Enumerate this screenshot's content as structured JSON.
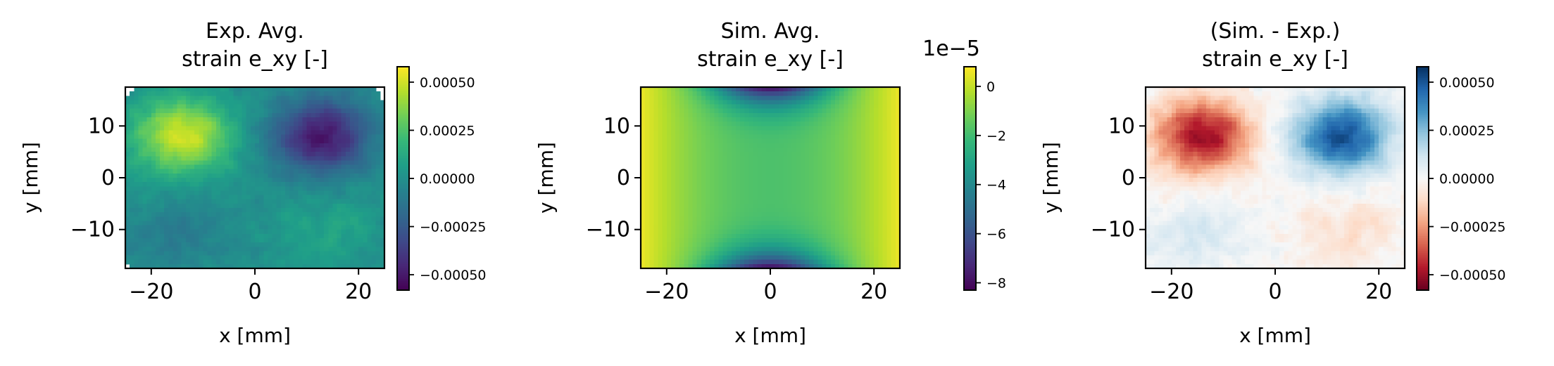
{
  "chart_data": [
    {
      "type": "heatmap",
      "id": "exp",
      "title": [
        "Exp. Avg.",
        "strain e_xy [-]"
      ],
      "xlabel": "x [mm]",
      "ylabel": "y [mm]",
      "xlim": [
        -25,
        25
      ],
      "ylim": [
        -17.5,
        17.5
      ],
      "xticks": [
        {
          "v": -20,
          "label": "−20"
        },
        {
          "v": 0,
          "label": "0"
        },
        {
          "v": 20,
          "label": "20"
        }
      ],
      "yticks": [
        {
          "v": 10,
          "label": "10"
        },
        {
          "v": 0,
          "label": "0"
        },
        {
          "v": -10,
          "label": "−10"
        }
      ],
      "colormap": "viridis",
      "clim": [
        -0.00058,
        0.00058
      ],
      "colorbar_ticks": [
        {
          "v": 0.0005,
          "label": "0.00050"
        },
        {
          "v": 0.00025,
          "label": "0.00025"
        },
        {
          "v": 0,
          "label": "0.00000"
        },
        {
          "v": -0.00025,
          "label": "−0.00025"
        },
        {
          "v": -0.0005,
          "label": "−0.00050"
        }
      ],
      "colorbar_offset": "",
      "field": {
        "description": "antisymmetric blobs",
        "blobs": [
          {
            "x": -14,
            "y": 8,
            "amplitude": 0.00052
          },
          {
            "x": 13,
            "y": 8,
            "amplitude": -0.00052
          },
          {
            "x": -15,
            "y": -11,
            "amplitude": -0.0001
          },
          {
            "x": 14,
            "y": -10,
            "amplitude": 0.0001
          }
        ],
        "noise": 6e-05
      }
    },
    {
      "type": "heatmap",
      "id": "sim",
      "title": [
        "Sim. Avg.",
        "strain e_xy [-]"
      ],
      "xlabel": "x [mm]",
      "ylabel": "y [mm]",
      "xlim": [
        -25,
        25
      ],
      "ylim": [
        -17.5,
        17.5
      ],
      "xticks": [
        {
          "v": -20,
          "label": "−20"
        },
        {
          "v": 0,
          "label": "0"
        },
        {
          "v": 20,
          "label": "20"
        }
      ],
      "yticks": [
        {
          "v": 10,
          "label": "10"
        },
        {
          "v": 0,
          "label": "0"
        },
        {
          "v": -10,
          "label": "−10"
        }
      ],
      "colormap": "viridis",
      "clim": [
        -8.3,
        0.8
      ],
      "colorbar_ticks": [
        {
          "v": 0,
          "label": "0"
        },
        {
          "v": -2,
          "label": "−2"
        },
        {
          "v": -4,
          "label": "−4"
        },
        {
          "v": -6,
          "label": "−6"
        },
        {
          "v": -8,
          "label": "−8"
        }
      ],
      "colorbar_offset": "1e−5",
      "field": {
        "description": "smooth field, near zero at left/right edges, negative at top/bottom center",
        "edge_value": 0.6,
        "center_value": -1.8,
        "top_bottom_min": -8.3
      }
    },
    {
      "type": "heatmap",
      "id": "diff",
      "title": [
        "(Sim. - Exp.)",
        "strain e_xy [-]"
      ],
      "xlabel": "x [mm]",
      "ylabel": "y [mm]",
      "xlim": [
        -25,
        25
      ],
      "ylim": [
        -17.5,
        17.5
      ],
      "xticks": [
        {
          "v": -20,
          "label": "−20"
        },
        {
          "v": 0,
          "label": "0"
        },
        {
          "v": 20,
          "label": "20"
        }
      ],
      "yticks": [
        {
          "v": 10,
          "label": "10"
        },
        {
          "v": 0,
          "label": "0"
        },
        {
          "v": -10,
          "label": "−10"
        }
      ],
      "colormap": "RdBu",
      "clim": [
        -0.00058,
        0.00058
      ],
      "colorbar_ticks": [
        {
          "v": 0.0005,
          "label": "0.00050"
        },
        {
          "v": 0.00025,
          "label": "0.00025"
        },
        {
          "v": 0,
          "label": "0.00000"
        },
        {
          "v": -0.00025,
          "label": "−0.00025"
        },
        {
          "v": -0.0005,
          "label": "−0.00050"
        }
      ],
      "colorbar_offset": "",
      "field": {
        "description": "negative of experimental field",
        "blobs": [
          {
            "x": -14,
            "y": 8,
            "amplitude": -0.00052
          },
          {
            "x": 13,
            "y": 8,
            "amplitude": 0.00052
          },
          {
            "x": -15,
            "y": -11,
            "amplitude": 0.0001
          },
          {
            "x": 14,
            "y": -10,
            "amplitude": -0.0001
          }
        ],
        "noise": 6e-05
      }
    }
  ]
}
